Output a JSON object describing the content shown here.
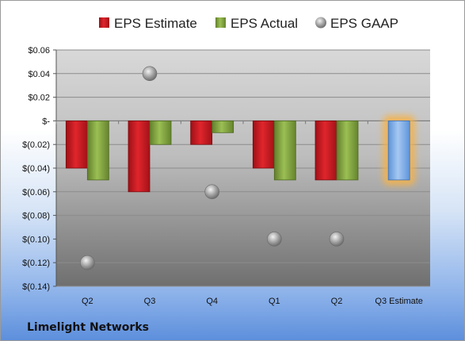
{
  "chart_data": {
    "type": "bar",
    "title": "",
    "categories": [
      "Q2",
      "Q3",
      "Q4",
      "Q1",
      "Q2",
      "Q3 Estimate"
    ],
    "series": [
      {
        "name": "EPS Estimate",
        "color": "#c0151c",
        "values": [
          -0.04,
          -0.06,
          -0.02,
          -0.04,
          -0.05,
          null
        ]
      },
      {
        "name": "EPS Actual",
        "color": "#7ea13a",
        "values": [
          -0.05,
          -0.02,
          -0.01,
          -0.05,
          -0.05,
          -0.05
        ]
      },
      {
        "name": "EPS GAAP",
        "color": "#a8a8a8",
        "values": [
          -0.12,
          0.04,
          -0.06,
          -0.1,
          -0.1,
          null
        ]
      }
    ],
    "highlight": {
      "category_index": 5,
      "series": "EPS Actual",
      "color": "#7aaee8",
      "glow": "#f5b24a"
    },
    "yticks": [
      0.06,
      0.04,
      0.02,
      0,
      -0.02,
      -0.04,
      -0.06,
      -0.08,
      -0.1,
      -0.12,
      -0.14
    ],
    "ytick_labels": [
      "$0.06",
      "$0.04",
      "$0.02",
      "$-",
      "$(0.02)",
      "$(0.04)",
      "$(0.06)",
      "$(0.08)",
      "$(0.10)",
      "$(0.12)",
      "$(0.14)"
    ],
    "ylim": [
      -0.14,
      0.06
    ],
    "xlabel": "",
    "ylabel": "",
    "grid": true,
    "legend": "top"
  },
  "footer": {
    "company": "Limelight Networks"
  }
}
